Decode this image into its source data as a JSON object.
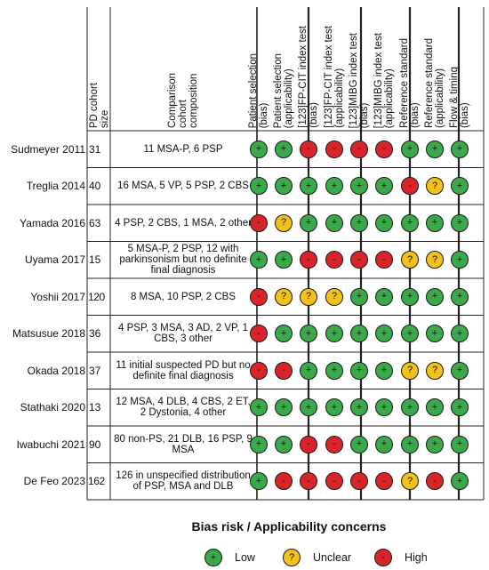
{
  "headers": {
    "cohort_size": [
      "PD cohort",
      "size"
    ],
    "comparison": [
      "Comparison",
      "cohort",
      "composition"
    ],
    "domains": [
      [
        "Patient selection",
        "(bias)"
      ],
      [
        "Patient selection",
        "(applicability)"
      ],
      [
        "[123]FP-CIT index test",
        "(bias)"
      ],
      [
        "[123]FP-CIT index test",
        "(applicability)"
      ],
      [
        "[123]MIBG index test",
        "(bias)"
      ],
      [
        "[123]MIBG index test",
        "(applicability)"
      ],
      [
        "Reference standard",
        "(bias)"
      ],
      [
        "Reference standard",
        "(applicability)"
      ],
      [
        "Flow & timing",
        "(bias)"
      ]
    ]
  },
  "studies": [
    {
      "name": "Sudmeyer 2011",
      "size": "31",
      "composition": "11 MSA-P, 6 PSP",
      "ratings": [
        "L",
        "L",
        "H",
        "H",
        "H",
        "H",
        "L",
        "L",
        "L"
      ]
    },
    {
      "name": "Treglia 2014",
      "size": "40",
      "composition": "16 MSA, 5 VP, 5 PSP, 2 CBS",
      "ratings": [
        "L",
        "L",
        "L",
        "L",
        "L",
        "L",
        "H",
        "U",
        "L"
      ]
    },
    {
      "name": "Yamada 2016",
      "size": "63",
      "composition": "4 PSP, 2 CBS, 1 MSA, 2 other",
      "ratings": [
        "H",
        "U",
        "L",
        "L",
        "L",
        "L",
        "L",
        "L",
        "L"
      ]
    },
    {
      "name": "Uyama 2017",
      "size": "15",
      "composition": "5 MSA-P, 2 PSP, 12 with parkinsonism but no definite final diagnosis",
      "ratings": [
        "L",
        "L",
        "H",
        "H",
        "H",
        "H",
        "U",
        "U",
        "L"
      ]
    },
    {
      "name": "Yoshii 2017",
      "size": "120",
      "composition": "8 MSA, 10 PSP, 2 CBS",
      "ratings": [
        "H",
        "U",
        "U",
        "U",
        "L",
        "L",
        "L",
        "L",
        "L"
      ]
    },
    {
      "name": "Matsusue 2018",
      "size": "36",
      "composition": "4 PSP, 3 MSA, 3 AD, 2 VP, 1 CBS, 3 other",
      "ratings": [
        "H",
        "L",
        "L",
        "L",
        "L",
        "L",
        "L",
        "L",
        "L"
      ]
    },
    {
      "name": "Okada 2018",
      "size": "37",
      "composition": "11 initial suspected PD but no definite final diagnosis",
      "ratings": [
        "H",
        "H",
        "L",
        "L",
        "L",
        "L",
        "U",
        "U",
        "L"
      ]
    },
    {
      "name": "Stathaki 2020",
      "size": "13",
      "composition": "12 MSA, 4 DLB, 4 CBS, 2 ET, 2 Dystonia, 4 other",
      "ratings": [
        "L",
        "L",
        "L",
        "L",
        "L",
        "L",
        "L",
        "L",
        "L"
      ]
    },
    {
      "name": "Iwabuchi 2021",
      "size": "90",
      "composition": "80 non-PS, 21 DLB, 16 PSP, 9 MSA",
      "ratings": [
        "L",
        "L",
        "H",
        "H",
        "L",
        "L",
        "L",
        "L",
        "L"
      ]
    },
    {
      "name": "De Feo 2023",
      "size": "162",
      "composition": "126 in unspecified distribution of PSP, MSA and DLB",
      "ratings": [
        "L",
        "H",
        "H",
        "H",
        "H",
        "H",
        "U",
        "H",
        "L"
      ]
    }
  ],
  "caption": "Bias risk / Applicability concerns",
  "legend": [
    {
      "key": "L",
      "label": "Low",
      "symbol": "+",
      "color": "#3aa94a"
    },
    {
      "key": "U",
      "label": "Unclear",
      "symbol": "?",
      "color": "#f2c21b"
    },
    {
      "key": "H",
      "label": "High",
      "symbol": "-",
      "color": "#d9252a"
    }
  ]
}
